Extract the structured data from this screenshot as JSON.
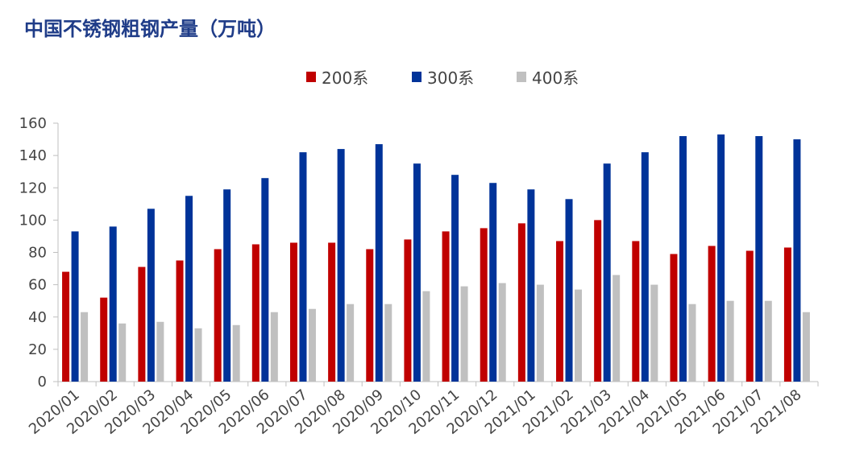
{
  "chart_data": {
    "type": "bar",
    "title": "中国不锈钢粗钢产量（万吨）",
    "categories": [
      "2020/01",
      "2020/02",
      "2020/03",
      "2020/04",
      "2020/05",
      "2020/06",
      "2020/07",
      "2020/08",
      "2020/09",
      "2020/10",
      "2020/11",
      "2020/12",
      "2021/01",
      "2021/02",
      "2021/03",
      "2021/04",
      "2021/05",
      "2021/06",
      "2021/07",
      "2021/08"
    ],
    "series": [
      {
        "name": "200系",
        "color": "#c00000",
        "values": [
          68,
          52,
          71,
          75,
          82,
          85,
          86,
          86,
          82,
          88,
          93,
          95,
          98,
          87,
          100,
          87,
          79,
          84,
          81,
          83
        ]
      },
      {
        "name": "300系",
        "color": "#003399",
        "values": [
          93,
          96,
          107,
          115,
          119,
          126,
          142,
          144,
          147,
          135,
          128,
          123,
          119,
          113,
          135,
          142,
          152,
          153,
          152,
          150
        ]
      },
      {
        "name": "400系",
        "color": "#c0c0c0",
        "values": [
          43,
          36,
          37,
          33,
          35,
          43,
          45,
          48,
          48,
          56,
          59,
          61,
          60,
          57,
          66,
          60,
          48,
          50,
          50,
          43
        ]
      }
    ],
    "ylim": [
      0,
      160
    ],
    "yticks": [
      0,
      20,
      40,
      60,
      80,
      100,
      120,
      140,
      160
    ],
    "xlabel": "",
    "ylabel": "",
    "grid": false,
    "legend_position": "top-center",
    "title_color": "#1f3c88"
  }
}
